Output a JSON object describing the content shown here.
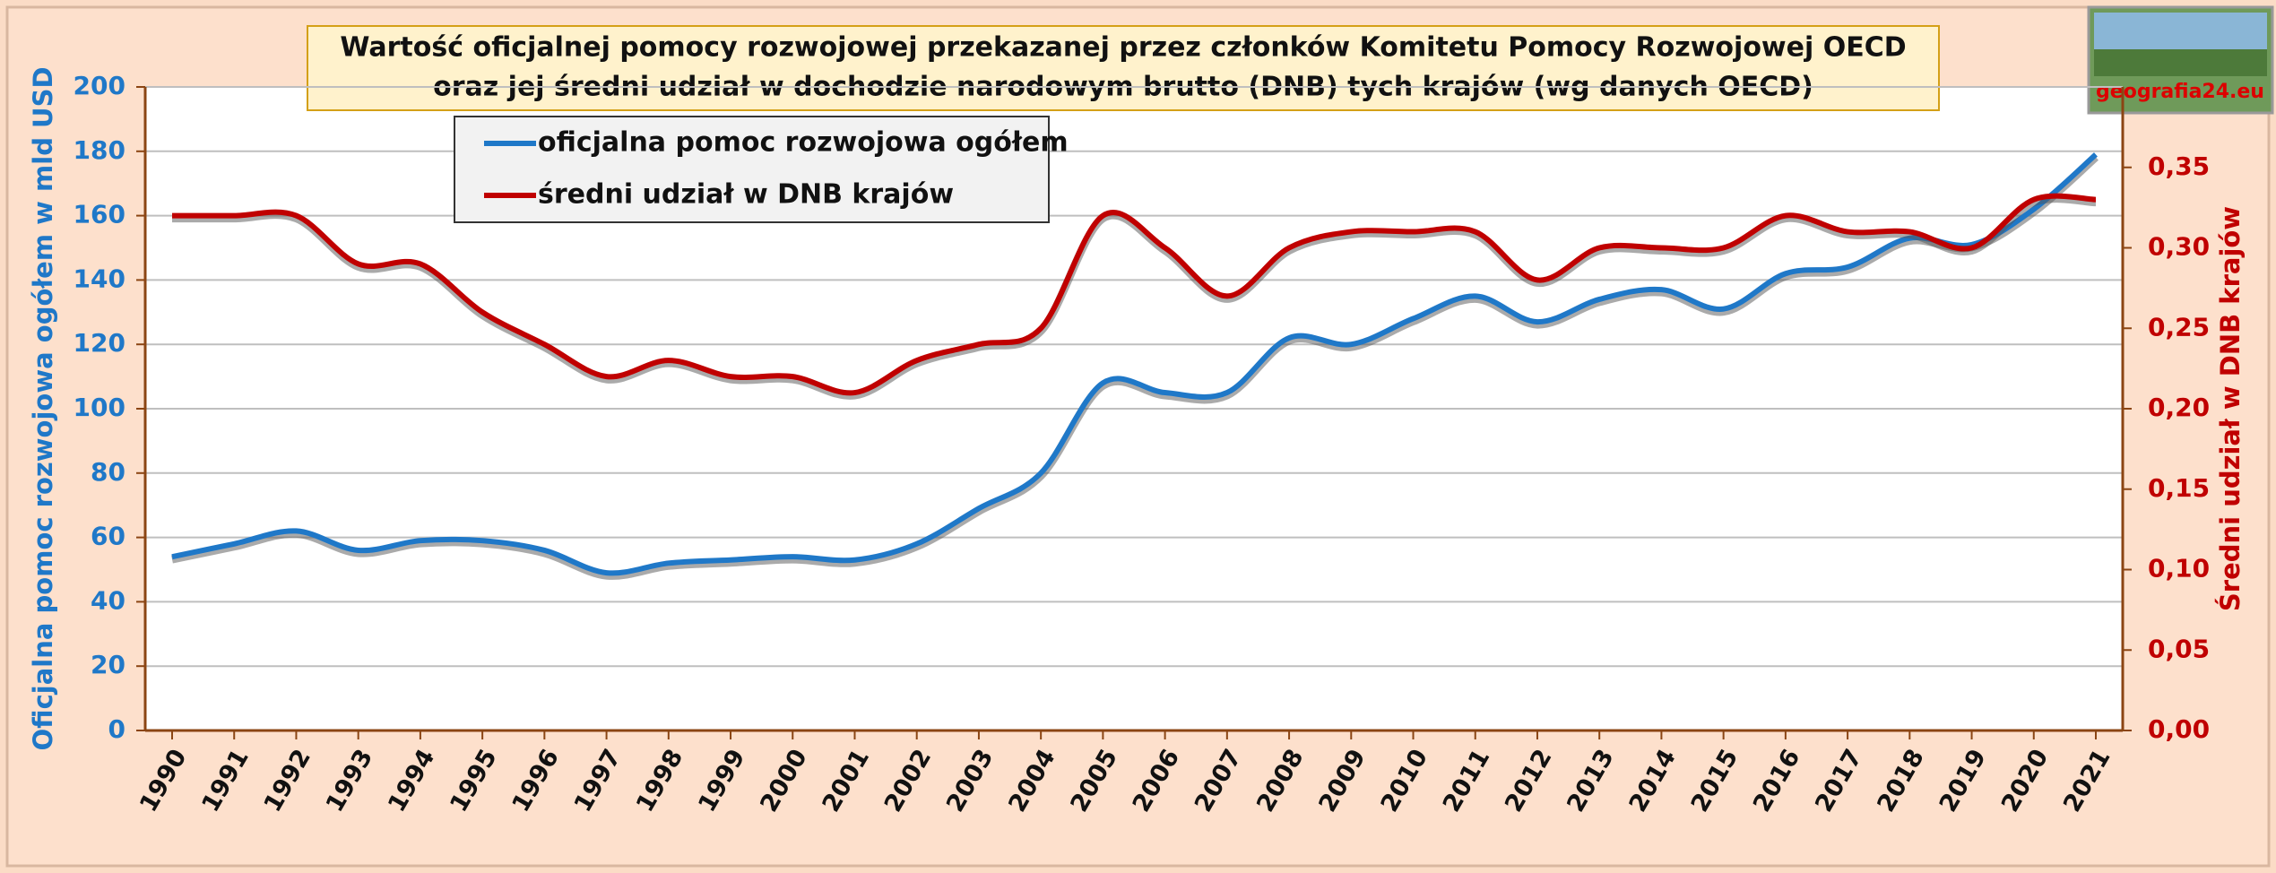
{
  "chart_data": {
    "type": "line",
    "title": "Wartość oficjalnej pomocy rozwojowej przekazanej przez członków Komitetu Pomocy Rozwojowej OECD",
    "subtitle": "oraz jej średni udział w dochodzie narodowym brutto (DNB) tych krajów (wg danych OECD)",
    "y_label": "Oficjalna pomoc rozwojowa ogółem w mld USD",
    "y2_label": "Średni udział w DNB krajów",
    "logo_text": "geografia24.eu",
    "categories": [
      "1990",
      "1991",
      "1992",
      "1993",
      "1994",
      "1995",
      "1996",
      "1997",
      "1998",
      "1999",
      "2000",
      "2001",
      "2002",
      "2003",
      "2004",
      "2005",
      "2006",
      "2007",
      "2008",
      "2009",
      "2010",
      "2011",
      "2012",
      "2013",
      "2014",
      "2015",
      "2016",
      "2017",
      "2018",
      "2019",
      "2020",
      "2021"
    ],
    "series": [
      {
        "name": "oficjalna pomoc rozwojowa ogółem",
        "color": "#1f78c8",
        "values": [
          54,
          58,
          62,
          56,
          59,
          59,
          56,
          49,
          52,
          53,
          54,
          53,
          58,
          69,
          80,
          108,
          105,
          105,
          122,
          120,
          128,
          135,
          127,
          134,
          137,
          131,
          142,
          144,
          153,
          151,
          162,
          179
        ]
      },
      {
        "name": "średni udział w DNB krajów",
        "color": "#c00000",
        "axis": "y2",
        "values": [
          0.32,
          0.32,
          0.32,
          0.29,
          0.29,
          0.26,
          0.24,
          0.22,
          0.23,
          0.22,
          0.22,
          0.21,
          0.23,
          0.24,
          0.25,
          0.32,
          0.3,
          0.27,
          0.3,
          0.31,
          0.31,
          0.31,
          0.28,
          0.3,
          0.3,
          0.3,
          0.32,
          0.31,
          0.31,
          0.3,
          0.33,
          0.33
        ]
      }
    ],
    "ylim": [
      0,
      200
    ],
    "yticks": [
      0,
      20,
      40,
      60,
      80,
      100,
      120,
      140,
      160,
      180,
      200
    ],
    "y2lim": [
      0,
      0.4
    ],
    "y2ticks": [
      {
        "value": 0,
        "label": "0,00"
      },
      {
        "value": 0.05,
        "label": "0,05"
      },
      {
        "value": 0.1,
        "label": "0,10"
      },
      {
        "value": 0.15,
        "label": "0,15"
      },
      {
        "value": 0.2,
        "label": "0,20"
      },
      {
        "value": 0.25,
        "label": "0,25"
      },
      {
        "value": 0.3,
        "label": "0,30"
      },
      {
        "value": 0.35,
        "label": "0,35"
      }
    ],
    "grid": true
  }
}
